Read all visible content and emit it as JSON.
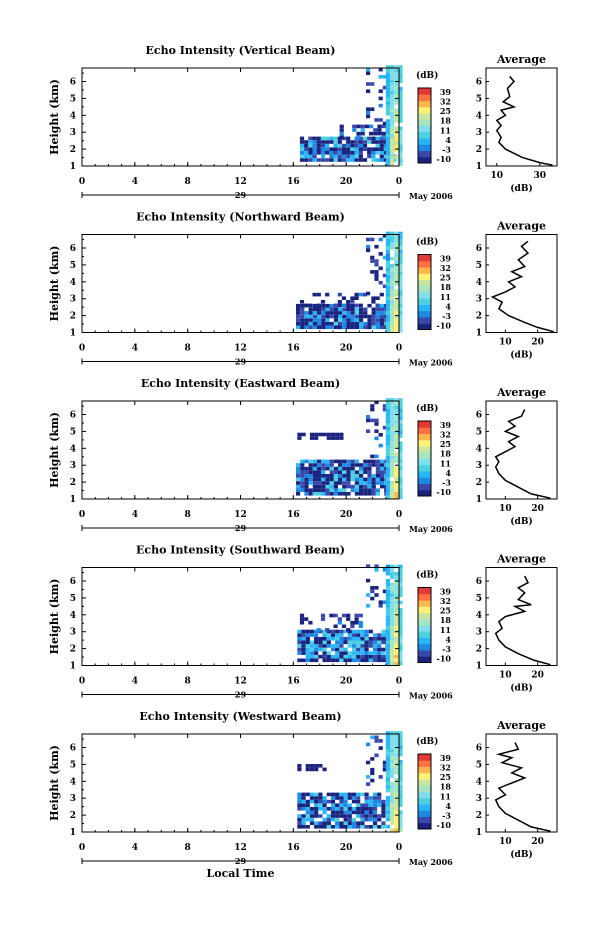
{
  "chart_data": {
    "type": "heatmap",
    "panels": [
      {
        "title": "Echo Intensity (Vertical Beam)",
        "avg_title": "Average",
        "avg_x": [
          10,
          30
        ],
        "avg_xlim": [
          5,
          38
        ],
        "avg_profile": [
          [
            36,
            1.05
          ],
          [
            30,
            1.2
          ],
          [
            22,
            1.5
          ],
          [
            14,
            2.0
          ],
          [
            11,
            2.4
          ],
          [
            12,
            2.7
          ],
          [
            10,
            3.1
          ],
          [
            12,
            3.4
          ],
          [
            10,
            3.7
          ],
          [
            14,
            4.0
          ],
          [
            12,
            4.3
          ],
          [
            18,
            4.5
          ],
          [
            13,
            4.8
          ],
          [
            16,
            5.1
          ],
          [
            15,
            5.6
          ],
          [
            18,
            6.0
          ],
          [
            16,
            6.3
          ]
        ],
        "clouds": [
          {
            "x0": 16.5,
            "x1": 23.5,
            "y0": 1.25,
            "y1": 2.6,
            "vmin": -16,
            "vmax": 10,
            "density": 0.9
          },
          {
            "x0": 19.5,
            "x1": 23.0,
            "y0": 2.6,
            "y1": 3.4,
            "vmin": -16,
            "vmax": 4,
            "density": 0.5
          },
          {
            "x0": 21.5,
            "x1": 23.0,
            "y0": 3.4,
            "y1": 6.8,
            "vmin": -16,
            "vmax": 4,
            "density": 0.25
          },
          {
            "x0": 23.0,
            "x1": 24.0,
            "y0": 1.0,
            "y1": 6.8,
            "vmin": 5,
            "vmax": 30,
            "density": 0.95
          }
        ]
      },
      {
        "title": "Echo Intensity (Northward Beam)",
        "avg_title": "Average",
        "avg_x": [
          10,
          20
        ],
        "avg_xlim": [
          4,
          26
        ],
        "avg_profile": [
          [
            25,
            1.05
          ],
          [
            20,
            1.3
          ],
          [
            16,
            1.6
          ],
          [
            11,
            2.0
          ],
          [
            8,
            2.4
          ],
          [
            9,
            2.8
          ],
          [
            6,
            3.1
          ],
          [
            10,
            3.4
          ],
          [
            13,
            3.7
          ],
          [
            11,
            4.0
          ],
          [
            15,
            4.3
          ],
          [
            12,
            4.6
          ],
          [
            16,
            4.9
          ],
          [
            14,
            5.3
          ],
          [
            17,
            5.7
          ],
          [
            15,
            6.1
          ],
          [
            17,
            6.4
          ]
        ],
        "clouds": [
          {
            "x0": 16.2,
            "x1": 23.0,
            "y0": 1.2,
            "y1": 2.5,
            "vmin": -16,
            "vmax": 8,
            "density": 0.92
          },
          {
            "x0": 16.5,
            "x1": 22.8,
            "y0": 2.5,
            "y1": 3.2,
            "vmin": -16,
            "vmax": 0,
            "density": 0.4
          },
          {
            "x0": 21.5,
            "x1": 23.0,
            "y0": 3.2,
            "y1": 6.8,
            "vmin": -16,
            "vmax": 4,
            "density": 0.2
          },
          {
            "x0": 23.0,
            "x1": 24.0,
            "y0": 1.0,
            "y1": 6.8,
            "vmin": 5,
            "vmax": 30,
            "density": 0.95
          }
        ]
      },
      {
        "title": "Echo Intensity (Eastward Beam)",
        "avg_title": "Average",
        "avg_x": [
          10,
          20
        ],
        "avg_xlim": [
          4,
          26
        ],
        "avg_profile": [
          [
            24,
            1.05
          ],
          [
            18,
            1.3
          ],
          [
            14,
            1.7
          ],
          [
            10,
            2.1
          ],
          [
            8,
            2.5
          ],
          [
            7,
            2.9
          ],
          [
            8,
            3.2
          ],
          [
            7,
            3.5
          ],
          [
            10,
            3.8
          ],
          [
            13,
            4.1
          ],
          [
            11,
            4.4
          ],
          [
            14,
            4.7
          ],
          [
            10,
            5.0
          ],
          [
            13,
            5.3
          ],
          [
            11,
            5.6
          ],
          [
            15,
            5.9
          ],
          [
            16,
            6.3
          ]
        ],
        "clouds": [
          {
            "x0": 16.2,
            "x1": 23.0,
            "y0": 1.2,
            "y1": 3.2,
            "vmin": -16,
            "vmax": 8,
            "density": 0.9
          },
          {
            "x0": 16.3,
            "x1": 19.5,
            "y0": 4.5,
            "y1": 4.8,
            "vmin": -16,
            "vmax": -8,
            "density": 0.8
          },
          {
            "x0": 21.5,
            "x1": 23.0,
            "y0": 3.2,
            "y1": 6.8,
            "vmin": -16,
            "vmax": 4,
            "density": 0.2
          },
          {
            "x0": 23.0,
            "x1": 24.0,
            "y0": 1.0,
            "y1": 6.8,
            "vmin": 5,
            "vmax": 30,
            "density": 0.95
          }
        ]
      },
      {
        "title": "Echo Intensity (Southward Beam)",
        "avg_title": "Average",
        "avg_x": [
          10,
          20
        ],
        "avg_xlim": [
          4,
          26
        ],
        "avg_profile": [
          [
            24,
            1.05
          ],
          [
            19,
            1.3
          ],
          [
            14,
            1.7
          ],
          [
            10,
            2.1
          ],
          [
            8,
            2.5
          ],
          [
            7,
            2.9
          ],
          [
            9,
            3.2
          ],
          [
            8,
            3.6
          ],
          [
            10,
            3.9
          ],
          [
            16,
            4.2
          ],
          [
            13,
            4.5
          ],
          [
            18,
            4.6
          ],
          [
            14,
            4.9
          ],
          [
            16,
            5.3
          ],
          [
            14,
            5.6
          ],
          [
            17,
            5.9
          ],
          [
            16,
            6.3
          ]
        ],
        "clouds": [
          {
            "x0": 16.3,
            "x1": 23.0,
            "y0": 1.2,
            "y1": 3.0,
            "vmin": -16,
            "vmax": 8,
            "density": 0.9
          },
          {
            "x0": 16.5,
            "x1": 21.0,
            "y0": 3.0,
            "y1": 4.0,
            "vmin": -16,
            "vmax": 0,
            "density": 0.35
          },
          {
            "x0": 21.5,
            "x1": 23.0,
            "y0": 4.0,
            "y1": 6.8,
            "vmin": -16,
            "vmax": 4,
            "density": 0.25
          },
          {
            "x0": 23.0,
            "x1": 24.0,
            "y0": 1.0,
            "y1": 6.8,
            "vmin": 5,
            "vmax": 30,
            "density": 0.95
          }
        ]
      },
      {
        "title": "Echo Intensity (Westward Beam)",
        "avg_title": "Average",
        "avg_x": [
          10,
          20
        ],
        "avg_xlim": [
          4,
          26
        ],
        "avg_profile": [
          [
            24,
            1.05
          ],
          [
            18,
            1.3
          ],
          [
            14,
            1.7
          ],
          [
            10,
            2.1
          ],
          [
            8,
            2.5
          ],
          [
            7,
            2.9
          ],
          [
            10,
            3.2
          ],
          [
            8,
            3.6
          ],
          [
            12,
            3.9
          ],
          [
            16,
            4.2
          ],
          [
            12,
            4.5
          ],
          [
            15,
            4.8
          ],
          [
            9,
            5.1
          ],
          [
            12,
            5.4
          ],
          [
            8,
            5.6
          ],
          [
            14,
            5.9
          ],
          [
            13,
            6.3
          ]
        ],
        "clouds": [
          {
            "x0": 16.3,
            "x1": 22.8,
            "y0": 1.2,
            "y1": 3.3,
            "vmin": -16,
            "vmax": 8,
            "density": 0.88
          },
          {
            "x0": 16.3,
            "x1": 18.5,
            "y0": 4.6,
            "y1": 4.85,
            "vmin": -16,
            "vmax": -8,
            "density": 0.7
          },
          {
            "x0": 21.5,
            "x1": 23.0,
            "y0": 3.3,
            "y1": 6.8,
            "vmin": -16,
            "vmax": 4,
            "density": 0.2
          },
          {
            "x0": 23.0,
            "x1": 24.0,
            "y0": 1.0,
            "y1": 6.8,
            "vmin": 5,
            "vmax": 30,
            "density": 0.95
          }
        ]
      }
    ],
    "x_ticks": [
      "0",
      "4",
      "8",
      "12",
      "16",
      "20",
      "0"
    ],
    "xlim": [
      0,
      24
    ],
    "y_ticks": [
      "1",
      "2",
      "3",
      "4",
      "5",
      "6"
    ],
    "ylim": [
      1,
      6.8
    ],
    "ylabel": "Height (km)",
    "colorbar_label": "(dB)",
    "colorbar_ticks": [
      "39",
      "32",
      "25",
      "18",
      "11",
      "4",
      "-3",
      "-10"
    ],
    "colorbar_range": [
      -10,
      39
    ],
    "date_day": "29",
    "date_text": "May 2006",
    "avg_xlabel": "(dB)",
    "xlabel": "Local Time",
    "colormap": [
      "#1a237e",
      "#3949ab",
      "#1e88e5",
      "#29b6f6",
      "#4dd0e1",
      "#80deea",
      "#a5e5c0",
      "#c8e6a0",
      "#fff176",
      "#ffb74d",
      "#ff7043",
      "#e53935"
    ]
  }
}
